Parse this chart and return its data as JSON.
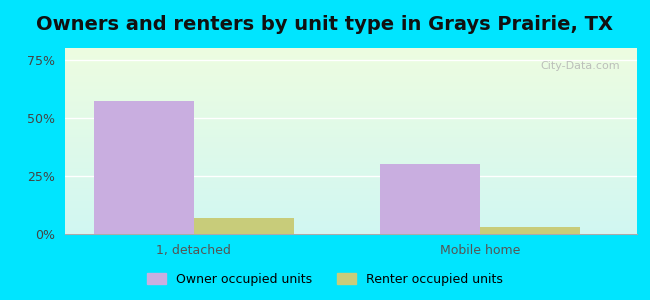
{
  "title": "Owners and renters by unit type in Grays Prairie, TX",
  "categories": [
    "1, detached",
    "Mobile home"
  ],
  "owner_values": [
    57,
    30
  ],
  "renter_values": [
    7,
    3
  ],
  "owner_color": "#c9aee0",
  "renter_color": "#c8cc7a",
  "yticks": [
    0,
    25,
    50,
    75
  ],
  "yticklabels": [
    "0%",
    "25%",
    "50%",
    "75%"
  ],
  "ylim": [
    0,
    80
  ],
  "outer_bg": "#00e5ff",
  "legend_owner": "Owner occupied units",
  "legend_renter": "Renter occupied units",
  "bar_width": 0.35,
  "title_fontsize": 14,
  "watermark": "City-Data.com",
  "x_positions": [
    0.35,
    1.35
  ],
  "xlim": [
    -0.1,
    1.9
  ]
}
